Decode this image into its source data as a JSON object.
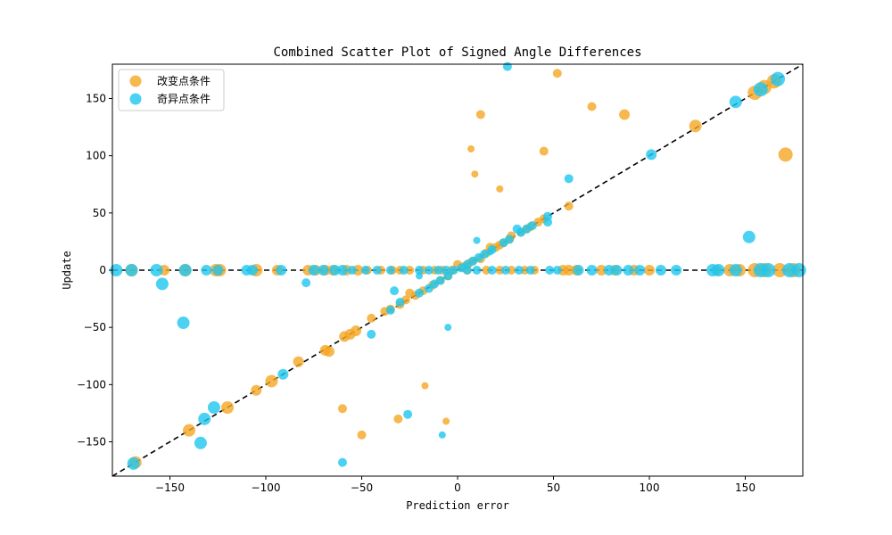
{
  "chart_data": {
    "type": "scatter",
    "title": "Combined Scatter Plot of Signed Angle Differences",
    "xlabel": "Prediction error",
    "ylabel": "Update",
    "xlim": [
      -180,
      180
    ],
    "ylim": [
      -180,
      180
    ],
    "x_ticks": [
      -150,
      -100,
      -50,
      0,
      50,
      100,
      150
    ],
    "y_ticks": [
      -150,
      -100,
      -50,
      0,
      50,
      100,
      150
    ],
    "x_tick_labels": [
      "−150",
      "−100",
      "−50",
      "0",
      "50",
      "100",
      "150"
    ],
    "y_tick_labels": [
      "−150",
      "−100",
      "−50",
      "0",
      "50",
      "100",
      "150"
    ],
    "grid": false,
    "legend_position": "top-left",
    "reference_lines": [
      {
        "name": "identity",
        "from": [
          -180,
          -180
        ],
        "to": [
          180,
          180
        ],
        "style": "dashed",
        "color": "#000000"
      },
      {
        "name": "zero",
        "from": [
          -180,
          0
        ],
        "to": [
          180,
          0
        ],
        "style": "dashed",
        "color": "#000000"
      }
    ],
    "series": [
      {
        "name": "改变点条件",
        "color": "#f5a623",
        "points": [
          [
            -170,
            0,
            7
          ],
          [
            -153,
            0,
            6
          ],
          [
            -142,
            0,
            7
          ],
          [
            -126,
            0,
            7
          ],
          [
            -124,
            0,
            7
          ],
          [
            -105,
            0,
            7
          ],
          [
            -94,
            0,
            6
          ],
          [
            -78,
            0,
            6
          ],
          [
            -74,
            0,
            6
          ],
          [
            -69,
            0,
            6
          ],
          [
            -65,
            0,
            6
          ],
          [
            -58,
            0,
            6
          ],
          [
            -52,
            0,
            6
          ],
          [
            -47,
            0,
            5
          ],
          [
            -40,
            0,
            5
          ],
          [
            -34,
            0,
            5
          ],
          [
            -30,
            0,
            5
          ],
          [
            -25,
            0,
            5
          ],
          [
            -18,
            0,
            5
          ],
          [
            -12,
            0,
            5
          ],
          [
            -8,
            0,
            5
          ],
          [
            -3,
            0,
            5
          ],
          [
            5,
            0,
            5
          ],
          [
            15,
            0,
            5
          ],
          [
            22,
            0,
            5
          ],
          [
            28,
            0,
            5
          ],
          [
            35,
            0,
            5
          ],
          [
            40,
            0,
            5
          ],
          [
            55,
            0,
            6
          ],
          [
            58,
            0,
            6
          ],
          [
            62,
            0,
            6
          ],
          [
            75,
            0,
            6
          ],
          [
            82,
            0,
            6
          ],
          [
            92,
            0,
            6
          ],
          [
            100,
            0,
            6
          ],
          [
            135,
            0,
            6
          ],
          [
            142,
            0,
            7
          ],
          [
            147,
            0,
            7
          ],
          [
            155,
            0,
            8
          ],
          [
            160,
            0,
            8
          ],
          [
            168,
            0,
            8
          ],
          [
            175,
            0,
            8
          ],
          [
            -168,
            -168,
            7
          ],
          [
            -140,
            -140,
            7
          ],
          [
            -120,
            -120,
            7
          ],
          [
            -105,
            -105,
            6
          ],
          [
            -97,
            -97,
            7
          ],
          [
            -83,
            -80,
            6
          ],
          [
            -69,
            -70,
            6
          ],
          [
            -67,
            -71,
            6
          ],
          [
            -59,
            -58,
            6
          ],
          [
            -56,
            -56,
            6
          ],
          [
            -53,
            -53,
            6
          ],
          [
            -45,
            -42,
            5
          ],
          [
            -38,
            -36,
            5
          ],
          [
            -35,
            -34,
            5
          ],
          [
            -30,
            -30,
            5
          ],
          [
            -27,
            -26,
            5
          ],
          [
            -25,
            -20,
            5
          ],
          [
            -22,
            -22,
            5
          ],
          [
            -18,
            -18,
            5
          ],
          [
            -13,
            -13,
            5
          ],
          [
            -9,
            -9,
            5
          ],
          [
            -5,
            -5,
            5
          ],
          [
            0,
            5,
            5
          ],
          [
            3,
            3,
            5
          ],
          [
            6,
            6,
            5
          ],
          [
            8,
            8,
            5
          ],
          [
            12,
            10,
            5
          ],
          [
            15,
            15,
            5
          ],
          [
            17,
            20,
            5
          ],
          [
            20,
            20,
            5
          ],
          [
            22,
            22,
            5
          ],
          [
            24,
            24,
            5
          ],
          [
            27,
            27,
            5
          ],
          [
            28,
            30,
            5
          ],
          [
            33,
            33,
            5
          ],
          [
            36,
            36,
            5
          ],
          [
            38,
            38,
            5
          ],
          [
            42,
            42,
            5
          ],
          [
            45,
            45,
            5
          ],
          [
            58,
            56,
            5
          ],
          [
            124,
            126,
            7
          ],
          [
            155,
            155,
            8
          ],
          [
            160,
            160,
            8
          ],
          [
            165,
            165,
            8
          ],
          [
            52,
            172,
            5
          ],
          [
            70,
            143,
            5
          ],
          [
            87,
            136,
            6
          ],
          [
            12,
            136,
            5
          ],
          [
            7,
            106,
            4
          ],
          [
            45,
            104,
            5
          ],
          [
            9,
            84,
            4
          ],
          [
            22,
            71,
            4
          ],
          [
            171,
            101,
            8
          ],
          [
            -60,
            -121,
            5
          ],
          [
            -50,
            -144,
            5
          ],
          [
            -31,
            -130,
            5
          ],
          [
            -17,
            -101,
            4
          ],
          [
            -6,
            -132,
            4
          ]
        ]
      },
      {
        "name": "奇异点条件",
        "color": "#1ec7f0",
        "points": [
          [
            -178,
            0,
            7
          ],
          [
            -170,
            0,
            7
          ],
          [
            -157,
            0,
            7
          ],
          [
            -142,
            0,
            7
          ],
          [
            -131,
            0,
            6
          ],
          [
            -125,
            0,
            6
          ],
          [
            -110,
            0,
            6
          ],
          [
            -107,
            0,
            6
          ],
          [
            -92,
            0,
            6
          ],
          [
            -75,
            0,
            6
          ],
          [
            -70,
            0,
            6
          ],
          [
            -64,
            0,
            6
          ],
          [
            -60,
            0,
            6
          ],
          [
            -55,
            0,
            5
          ],
          [
            -48,
            0,
            5
          ],
          [
            -42,
            0,
            5
          ],
          [
            -35,
            0,
            5
          ],
          [
            -28,
            0,
            5
          ],
          [
            -20,
            0,
            5
          ],
          [
            -15,
            0,
            5
          ],
          [
            -10,
            0,
            5
          ],
          [
            -6,
            0,
            5
          ],
          [
            -2,
            0,
            5
          ],
          [
            5,
            0,
            5
          ],
          [
            10,
            0,
            5
          ],
          [
            18,
            0,
            5
          ],
          [
            25,
            0,
            5
          ],
          [
            32,
            0,
            5
          ],
          [
            38,
            0,
            5
          ],
          [
            48,
            0,
            5
          ],
          [
            52,
            0,
            5
          ],
          [
            63,
            0,
            6
          ],
          [
            70,
            0,
            6
          ],
          [
            79,
            0,
            6
          ],
          [
            83,
            0,
            6
          ],
          [
            89,
            0,
            6
          ],
          [
            95,
            0,
            6
          ],
          [
            106,
            0,
            6
          ],
          [
            114,
            0,
            6
          ],
          [
            133,
            0,
            7
          ],
          [
            136,
            0,
            7
          ],
          [
            145,
            0,
            7
          ],
          [
            158,
            0,
            8
          ],
          [
            162,
            0,
            8
          ],
          [
            173,
            0,
            8
          ],
          [
            178,
            0,
            8
          ],
          [
            -169,
            -169,
            7
          ],
          [
            -134,
            -151,
            7
          ],
          [
            -132,
            -130,
            7
          ],
          [
            -127,
            -120,
            7
          ],
          [
            -91,
            -91,
            6
          ],
          [
            -35,
            -35,
            5
          ],
          [
            -30,
            -28,
            5
          ],
          [
            -20,
            -20,
            5
          ],
          [
            -15,
            -16,
            5
          ],
          [
            -12,
            -12,
            5
          ],
          [
            -9,
            -9,
            5
          ],
          [
            -5,
            -5,
            5
          ],
          [
            2,
            2,
            5
          ],
          [
            5,
            5,
            5
          ],
          [
            8,
            8,
            5
          ],
          [
            11,
            11,
            5
          ],
          [
            14,
            14,
            5
          ],
          [
            18,
            18,
            5
          ],
          [
            24,
            24,
            5
          ],
          [
            27,
            27,
            5
          ],
          [
            31,
            36,
            5
          ],
          [
            33,
            33,
            5
          ],
          [
            36,
            36,
            5
          ],
          [
            39,
            39,
            5
          ],
          [
            47,
            47,
            5
          ],
          [
            101,
            101,
            6
          ],
          [
            145,
            147,
            7
          ],
          [
            158,
            158,
            8
          ],
          [
            167,
            167,
            8
          ],
          [
            -154,
            -12,
            7
          ],
          [
            -143,
            -46,
            7
          ],
          [
            -79,
            -11,
            5
          ],
          [
            -33,
            -18,
            5
          ],
          [
            -20,
            -5,
            4
          ],
          [
            -45,
            -56,
            5
          ],
          [
            -60,
            -168,
            5
          ],
          [
            -26,
            -126,
            5
          ],
          [
            -8,
            -144,
            4
          ],
          [
            -5,
            -50,
            4
          ],
          [
            10,
            26,
            4
          ],
          [
            17,
            16,
            4
          ],
          [
            47,
            42,
            5
          ],
          [
            58,
            80,
            5
          ],
          [
            26,
            178,
            5
          ],
          [
            152,
            29,
            7
          ]
        ]
      }
    ]
  }
}
